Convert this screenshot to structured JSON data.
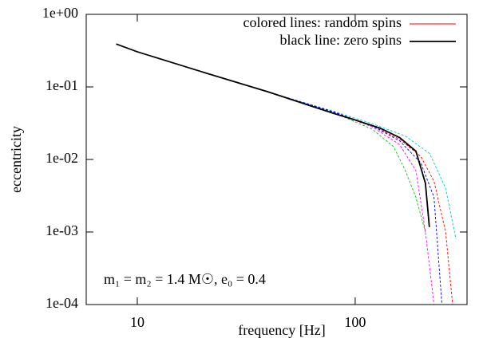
{
  "chart_data": {
    "type": "line",
    "xlabel": "frequency [Hz]",
    "ylabel": "eccentricity",
    "xscale": "log",
    "yscale": "log",
    "xlim": [
      5.83,
      326
    ],
    "ylim": [
      0.0001,
      1
    ],
    "xticks": [
      10,
      100
    ],
    "yticks": [
      {
        "value": 1,
        "label": "1e+00"
      },
      {
        "value": 0.1,
        "label": "1e-01"
      },
      {
        "value": 0.01,
        "label": "1e-02"
      },
      {
        "value": 0.001,
        "label": "1e-03"
      },
      {
        "value": 0.0001,
        "label": "1e-04"
      }
    ],
    "legend_position": "upper right",
    "annotation": "m₁ = m₂ =  1.4 M☉, e₀ = 0.4",
    "series": [
      {
        "name": "colored lines: random spins",
        "color": "#ff0000",
        "x": [
          40,
          80,
          120,
          160,
          200,
          230,
          260,
          280
        ],
        "values": [
          0.085,
          0.045,
          0.029,
          0.019,
          0.011,
          0.005,
          0.001,
          0.0001
        ]
      },
      {
        "color": "#00cc00",
        "x": [
          40,
          80,
          120,
          150,
          170,
          190,
          210
        ],
        "values": [
          0.085,
          0.044,
          0.026,
          0.015,
          0.007,
          0.003,
          0.001
        ]
      },
      {
        "color": "#00cccc",
        "x": [
          40,
          80,
          120,
          170,
          220,
          260,
          290
        ],
        "values": [
          0.085,
          0.046,
          0.031,
          0.021,
          0.012,
          0.004,
          0.0008
        ]
      },
      {
        "color": "#ff00ff",
        "x": [
          40,
          80,
          120,
          160,
          190,
          210,
          230
        ],
        "values": [
          0.085,
          0.045,
          0.028,
          0.016,
          0.007,
          0.001,
          0.0001
        ]
      },
      {
        "color": "#0000ff",
        "x": [
          40,
          80,
          120,
          160,
          200,
          230,
          250
        ],
        "values": [
          0.085,
          0.045,
          0.029,
          0.018,
          0.009,
          0.003,
          0.0001
        ]
      },
      {
        "name": "black line: zero spins",
        "color": "#000000",
        "x": [
          8,
          10,
          20,
          40,
          60,
          80,
          100,
          130,
          160,
          190,
          210,
          219
        ],
        "values": [
          0.39,
          0.305,
          0.16,
          0.085,
          0.057,
          0.043,
          0.035,
          0.027,
          0.02,
          0.013,
          0.0047,
          0.00117
        ]
      }
    ]
  }
}
